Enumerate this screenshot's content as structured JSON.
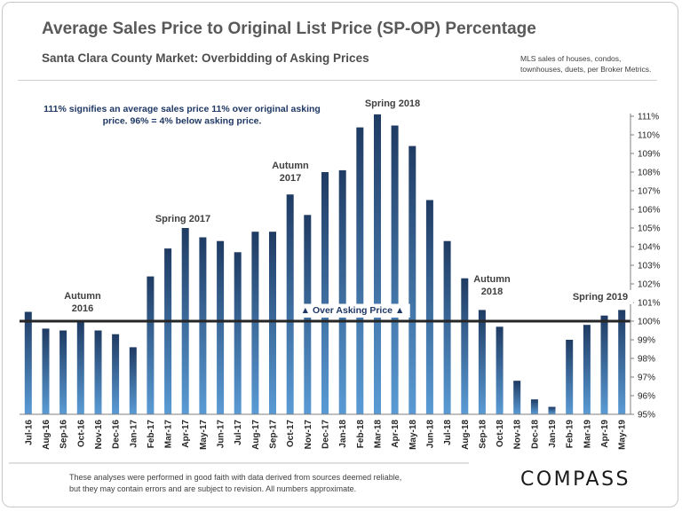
{
  "header": {
    "title": "Average Sales Price to Original List Price (SP-OP) Percentage",
    "subtitle": "Santa Clara County Market: Overbidding of Asking Prices",
    "source_lines": [
      "MLS sales of houses, condos,",
      "townhouses, duets, per Broker Metrics."
    ]
  },
  "footer": {
    "disclaimer_lines": [
      "These analyses were performed in good faith with data derived from sources deemed reliable,",
      "but they may contain errors and are subject to revision. All numbers approximate."
    ],
    "brand": "COMPASS"
  },
  "chart_data": {
    "type": "bar",
    "categories": [
      "Jul-16",
      "Aug-16",
      "Sep-16",
      "Oct-16",
      "Nov-16",
      "Dec-16",
      "Jan-17",
      "Feb-17",
      "Mar-17",
      "Apr-17",
      "May-17",
      "Jun-17",
      "Jul-17",
      "Aug-17",
      "Sep-17",
      "Oct-17",
      "Nov-17",
      "Dec-17",
      "Jan-18",
      "Feb-18",
      "Mar-18",
      "Apr-18",
      "May-18",
      "Jun-18",
      "Jul-18",
      "Aug-18",
      "Sep-18",
      "Oct-18",
      "Nov-18",
      "Dec-18",
      "Jan-19",
      "Feb-19",
      "Mar-19",
      "Apr-19",
      "May-19"
    ],
    "values": [
      100.5,
      99.6,
      99.5,
      100.0,
      99.5,
      99.3,
      98.6,
      102.4,
      103.9,
      105.0,
      104.5,
      104.3,
      103.7,
      104.8,
      104.8,
      106.8,
      105.7,
      108.0,
      108.1,
      110.4,
      111.1,
      110.5,
      109.4,
      106.5,
      104.3,
      102.3,
      100.6,
      99.7,
      96.8,
      95.8,
      95.4,
      99.0,
      99.8,
      100.3,
      100.6
    ],
    "ylim": [
      95,
      111.5
    ],
    "yticks": [
      95,
      96,
      97,
      98,
      99,
      100,
      101,
      102,
      103,
      104,
      105,
      106,
      107,
      108,
      109,
      110,
      111
    ],
    "ytick_labels": [
      "95%",
      "96%",
      "97%",
      "98%",
      "99%",
      "100%",
      "101%",
      "102%",
      "103%",
      "104%",
      "105%",
      "106%",
      "107%",
      "108%",
      "109%",
      "110%",
      "111%"
    ],
    "reference_line": 100,
    "bar_color_top": "#1f3b63",
    "bar_color_bottom": "#5a9bd5",
    "reference_color": "#262626",
    "annotations": {
      "note_lines": [
        "111% signifies an average sales price 11% over original asking",
        "price. 96% = 4% below asking price."
      ],
      "over_asking": "▲ Over Asking Price ▲",
      "autumn_2016": [
        "Autumn",
        "2016"
      ],
      "spring_2017": [
        "Spring 2017"
      ],
      "autumn_2017": [
        "Autumn",
        "2017"
      ],
      "spring_2018": [
        "Spring 2018"
      ],
      "autumn_2018": [
        "Autumn",
        "2018"
      ],
      "spring_2019": [
        "Spring 2019"
      ]
    }
  }
}
